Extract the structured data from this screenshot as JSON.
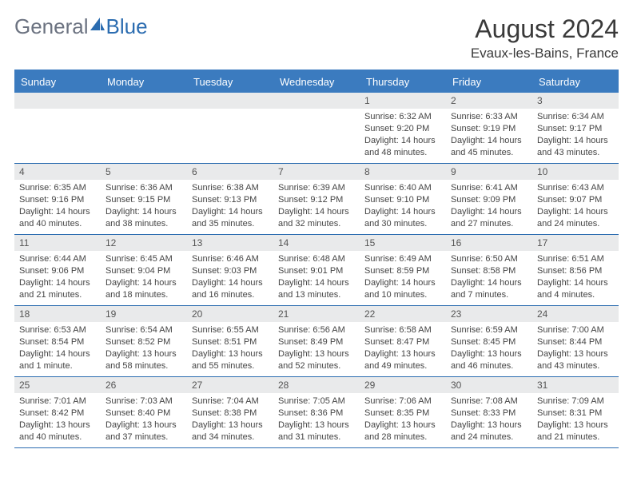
{
  "logo": {
    "general": "General",
    "blue": "Blue"
  },
  "title": "August 2024",
  "location": "Evaux-les-Bains, France",
  "colors": {
    "header_bg": "#3b7bbf",
    "header_text": "#ffffff",
    "date_bg": "#e9eaeb",
    "border": "#2b6cb0",
    "logo_gray": "#6b7280",
    "logo_blue": "#2b6cb0"
  },
  "dayNames": [
    "Sunday",
    "Monday",
    "Tuesday",
    "Wednesday",
    "Thursday",
    "Friday",
    "Saturday"
  ],
  "weeks": [
    [
      {
        "empty": true
      },
      {
        "empty": true
      },
      {
        "empty": true
      },
      {
        "empty": true
      },
      {
        "date": "1",
        "sunrise": "Sunrise: 6:32 AM",
        "sunset": "Sunset: 9:20 PM",
        "daylight": "Daylight: 14 hours and 48 minutes."
      },
      {
        "date": "2",
        "sunrise": "Sunrise: 6:33 AM",
        "sunset": "Sunset: 9:19 PM",
        "daylight": "Daylight: 14 hours and 45 minutes."
      },
      {
        "date": "3",
        "sunrise": "Sunrise: 6:34 AM",
        "sunset": "Sunset: 9:17 PM",
        "daylight": "Daylight: 14 hours and 43 minutes."
      }
    ],
    [
      {
        "date": "4",
        "sunrise": "Sunrise: 6:35 AM",
        "sunset": "Sunset: 9:16 PM",
        "daylight": "Daylight: 14 hours and 40 minutes."
      },
      {
        "date": "5",
        "sunrise": "Sunrise: 6:36 AM",
        "sunset": "Sunset: 9:15 PM",
        "daylight": "Daylight: 14 hours and 38 minutes."
      },
      {
        "date": "6",
        "sunrise": "Sunrise: 6:38 AM",
        "sunset": "Sunset: 9:13 PM",
        "daylight": "Daylight: 14 hours and 35 minutes."
      },
      {
        "date": "7",
        "sunrise": "Sunrise: 6:39 AM",
        "sunset": "Sunset: 9:12 PM",
        "daylight": "Daylight: 14 hours and 32 minutes."
      },
      {
        "date": "8",
        "sunrise": "Sunrise: 6:40 AM",
        "sunset": "Sunset: 9:10 PM",
        "daylight": "Daylight: 14 hours and 30 minutes."
      },
      {
        "date": "9",
        "sunrise": "Sunrise: 6:41 AM",
        "sunset": "Sunset: 9:09 PM",
        "daylight": "Daylight: 14 hours and 27 minutes."
      },
      {
        "date": "10",
        "sunrise": "Sunrise: 6:43 AM",
        "sunset": "Sunset: 9:07 PM",
        "daylight": "Daylight: 14 hours and 24 minutes."
      }
    ],
    [
      {
        "date": "11",
        "sunrise": "Sunrise: 6:44 AM",
        "sunset": "Sunset: 9:06 PM",
        "daylight": "Daylight: 14 hours and 21 minutes."
      },
      {
        "date": "12",
        "sunrise": "Sunrise: 6:45 AM",
        "sunset": "Sunset: 9:04 PM",
        "daylight": "Daylight: 14 hours and 18 minutes."
      },
      {
        "date": "13",
        "sunrise": "Sunrise: 6:46 AM",
        "sunset": "Sunset: 9:03 PM",
        "daylight": "Daylight: 14 hours and 16 minutes."
      },
      {
        "date": "14",
        "sunrise": "Sunrise: 6:48 AM",
        "sunset": "Sunset: 9:01 PM",
        "daylight": "Daylight: 14 hours and 13 minutes."
      },
      {
        "date": "15",
        "sunrise": "Sunrise: 6:49 AM",
        "sunset": "Sunset: 8:59 PM",
        "daylight": "Daylight: 14 hours and 10 minutes."
      },
      {
        "date": "16",
        "sunrise": "Sunrise: 6:50 AM",
        "sunset": "Sunset: 8:58 PM",
        "daylight": "Daylight: 14 hours and 7 minutes."
      },
      {
        "date": "17",
        "sunrise": "Sunrise: 6:51 AM",
        "sunset": "Sunset: 8:56 PM",
        "daylight": "Daylight: 14 hours and 4 minutes."
      }
    ],
    [
      {
        "date": "18",
        "sunrise": "Sunrise: 6:53 AM",
        "sunset": "Sunset: 8:54 PM",
        "daylight": "Daylight: 14 hours and 1 minute."
      },
      {
        "date": "19",
        "sunrise": "Sunrise: 6:54 AM",
        "sunset": "Sunset: 8:52 PM",
        "daylight": "Daylight: 13 hours and 58 minutes."
      },
      {
        "date": "20",
        "sunrise": "Sunrise: 6:55 AM",
        "sunset": "Sunset: 8:51 PM",
        "daylight": "Daylight: 13 hours and 55 minutes."
      },
      {
        "date": "21",
        "sunrise": "Sunrise: 6:56 AM",
        "sunset": "Sunset: 8:49 PM",
        "daylight": "Daylight: 13 hours and 52 minutes."
      },
      {
        "date": "22",
        "sunrise": "Sunrise: 6:58 AM",
        "sunset": "Sunset: 8:47 PM",
        "daylight": "Daylight: 13 hours and 49 minutes."
      },
      {
        "date": "23",
        "sunrise": "Sunrise: 6:59 AM",
        "sunset": "Sunset: 8:45 PM",
        "daylight": "Daylight: 13 hours and 46 minutes."
      },
      {
        "date": "24",
        "sunrise": "Sunrise: 7:00 AM",
        "sunset": "Sunset: 8:44 PM",
        "daylight": "Daylight: 13 hours and 43 minutes."
      }
    ],
    [
      {
        "date": "25",
        "sunrise": "Sunrise: 7:01 AM",
        "sunset": "Sunset: 8:42 PM",
        "daylight": "Daylight: 13 hours and 40 minutes."
      },
      {
        "date": "26",
        "sunrise": "Sunrise: 7:03 AM",
        "sunset": "Sunset: 8:40 PM",
        "daylight": "Daylight: 13 hours and 37 minutes."
      },
      {
        "date": "27",
        "sunrise": "Sunrise: 7:04 AM",
        "sunset": "Sunset: 8:38 PM",
        "daylight": "Daylight: 13 hours and 34 minutes."
      },
      {
        "date": "28",
        "sunrise": "Sunrise: 7:05 AM",
        "sunset": "Sunset: 8:36 PM",
        "daylight": "Daylight: 13 hours and 31 minutes."
      },
      {
        "date": "29",
        "sunrise": "Sunrise: 7:06 AM",
        "sunset": "Sunset: 8:35 PM",
        "daylight": "Daylight: 13 hours and 28 minutes."
      },
      {
        "date": "30",
        "sunrise": "Sunrise: 7:08 AM",
        "sunset": "Sunset: 8:33 PM",
        "daylight": "Daylight: 13 hours and 24 minutes."
      },
      {
        "date": "31",
        "sunrise": "Sunrise: 7:09 AM",
        "sunset": "Sunset: 8:31 PM",
        "daylight": "Daylight: 13 hours and 21 minutes."
      }
    ]
  ]
}
